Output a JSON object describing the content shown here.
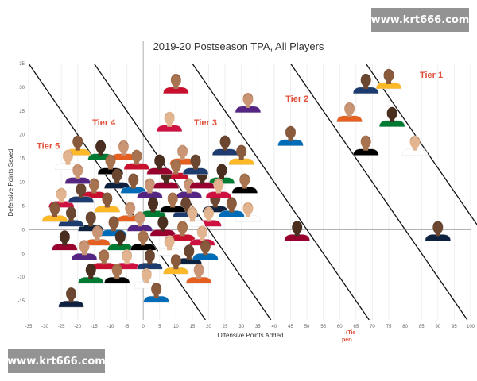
{
  "watermark": "www.krt666.com",
  "colors": {
    "tier": "#e0503a",
    "gridline": "#eeeeee",
    "zeroline": "#999999",
    "tierline": "#111111",
    "skin_tones": [
      "#6b4630",
      "#8a5a3c",
      "#c99575",
      "#4a2e1f",
      "#a8734f",
      "#e2b48f"
    ],
    "jersey_colors": [
      "#1d3b6e",
      "#ffffff",
      "#c8102e",
      "#007a33",
      "#552583",
      "#fdb927",
      "#0e2240",
      "#ce1141",
      "#000000",
      "#98002e",
      "#e56020",
      "#006bb6"
    ]
  },
  "chart_data": {
    "type": "scatter",
    "title": "2019-20 Postseason TPA, All Players",
    "xlabel": "Offensive Points Added",
    "ylabel": "Defensive Points Saved",
    "xlim": [
      -35,
      100
    ],
    "ylim": [
      -19,
      35
    ],
    "x_ticks": [
      -35,
      -30,
      -25,
      -20,
      -15,
      -10,
      -5,
      0,
      5,
      10,
      15,
      20,
      25,
      30,
      35,
      40,
      45,
      50,
      55,
      60,
      65,
      70,
      75,
      80,
      85,
      90,
      95,
      100
    ],
    "y_ticks": [
      35,
      30,
      25,
      20,
      15,
      10,
      5,
      0,
      -5,
      -10,
      -15
    ],
    "grid": "light vertical gridlines",
    "marker_style": "player headshot",
    "tier_lines_x_intercept": [
      0,
      20,
      50,
      80,
      103
    ],
    "tiers": [
      {
        "name": "Tier 1",
        "x": 88,
        "y": 32
      },
      {
        "name": "Tier 2",
        "x": 47,
        "y": 27
      },
      {
        "name": "Tier 3",
        "x": 19,
        "y": 22
      },
      {
        "name": "Tier 4",
        "x": -12,
        "y": 22
      },
      {
        "name": "Tier 5",
        "x": -29,
        "y": 17
      }
    ],
    "note": [
      "(Tie",
      "per-"
    ],
    "points": [
      {
        "x": 68,
        "y": 30
      },
      {
        "x": 75,
        "y": 31
      },
      {
        "x": 63,
        "y": 24
      },
      {
        "x": 76,
        "y": 23
      },
      {
        "x": 68,
        "y": 17
      },
      {
        "x": 83,
        "y": 17
      },
      {
        "x": 90,
        "y": -1
      },
      {
        "x": 45,
        "y": 19
      },
      {
        "x": 32,
        "y": 26
      },
      {
        "x": 47,
        "y": -1
      },
      {
        "x": 10,
        "y": 30
      },
      {
        "x": 8,
        "y": 22
      },
      {
        "x": 25,
        "y": 17
      },
      {
        "x": 30,
        "y": 15
      },
      {
        "x": 12,
        "y": 15
      },
      {
        "x": 24,
        "y": 11
      },
      {
        "x": 31,
        "y": 9
      },
      {
        "x": 32,
        "y": 3
      },
      {
        "x": 22,
        "y": 5
      },
      {
        "x": 27,
        "y": 4
      },
      {
        "x": 14,
        "y": 8
      },
      {
        "x": 18,
        "y": 10
      },
      {
        "x": 10,
        "y": 12
      },
      {
        "x": 20,
        "y": 2
      },
      {
        "x": 13,
        "y": 4
      },
      {
        "x": -20,
        "y": 17
      },
      {
        "x": -6,
        "y": 16
      },
      {
        "x": -13,
        "y": 16
      },
      {
        "x": -10,
        "y": 13
      },
      {
        "x": -23,
        "y": 14
      },
      {
        "x": -8,
        "y": 10
      },
      {
        "x": -3,
        "y": 9
      },
      {
        "x": 2,
        "y": 8
      },
      {
        "x": 7,
        "y": 10
      },
      {
        "x": -15,
        "y": 8
      },
      {
        "x": -25,
        "y": 6
      },
      {
        "x": -19,
        "y": 7
      },
      {
        "x": -11,
        "y": 5
      },
      {
        "x": -4,
        "y": 3
      },
      {
        "x": 3,
        "y": 4
      },
      {
        "x": 9,
        "y": 5
      },
      {
        "x": 15,
        "y": 2
      },
      {
        "x": -16,
        "y": 1
      },
      {
        "x": -9,
        "y": 0
      },
      {
        "x": -1,
        "y": 1
      },
      {
        "x": 6,
        "y": 0
      },
      {
        "x": 12,
        "y": -1
      },
      {
        "x": 18,
        "y": -2
      },
      {
        "x": -22,
        "y": 2
      },
      {
        "x": -27,
        "y": 3
      },
      {
        "x": -14,
        "y": -2
      },
      {
        "x": -7,
        "y": -3
      },
      {
        "x": 0,
        "y": -3
      },
      {
        "x": 8,
        "y": -4
      },
      {
        "x": 14,
        "y": -6
      },
      {
        "x": 19,
        "y": -5
      },
      {
        "x": -18,
        "y": -5
      },
      {
        "x": -24,
        "y": -3
      },
      {
        "x": -12,
        "y": -7
      },
      {
        "x": -5,
        "y": -7
      },
      {
        "x": 2,
        "y": -7
      },
      {
        "x": 10,
        "y": -8
      },
      {
        "x": 17,
        "y": -10
      },
      {
        "x": -16,
        "y": -10
      },
      {
        "x": -8,
        "y": -10
      },
      {
        "x": 1,
        "y": -11
      },
      {
        "x": -22,
        "y": -15
      },
      {
        "x": 4,
        "y": -14
      },
      {
        "x": -20,
        "y": 11
      },
      {
        "x": 5,
        "y": 13
      },
      {
        "x": -2,
        "y": 14
      },
      {
        "x": 23,
        "y": 8
      },
      {
        "x": 16,
        "y": 13
      }
    ]
  }
}
